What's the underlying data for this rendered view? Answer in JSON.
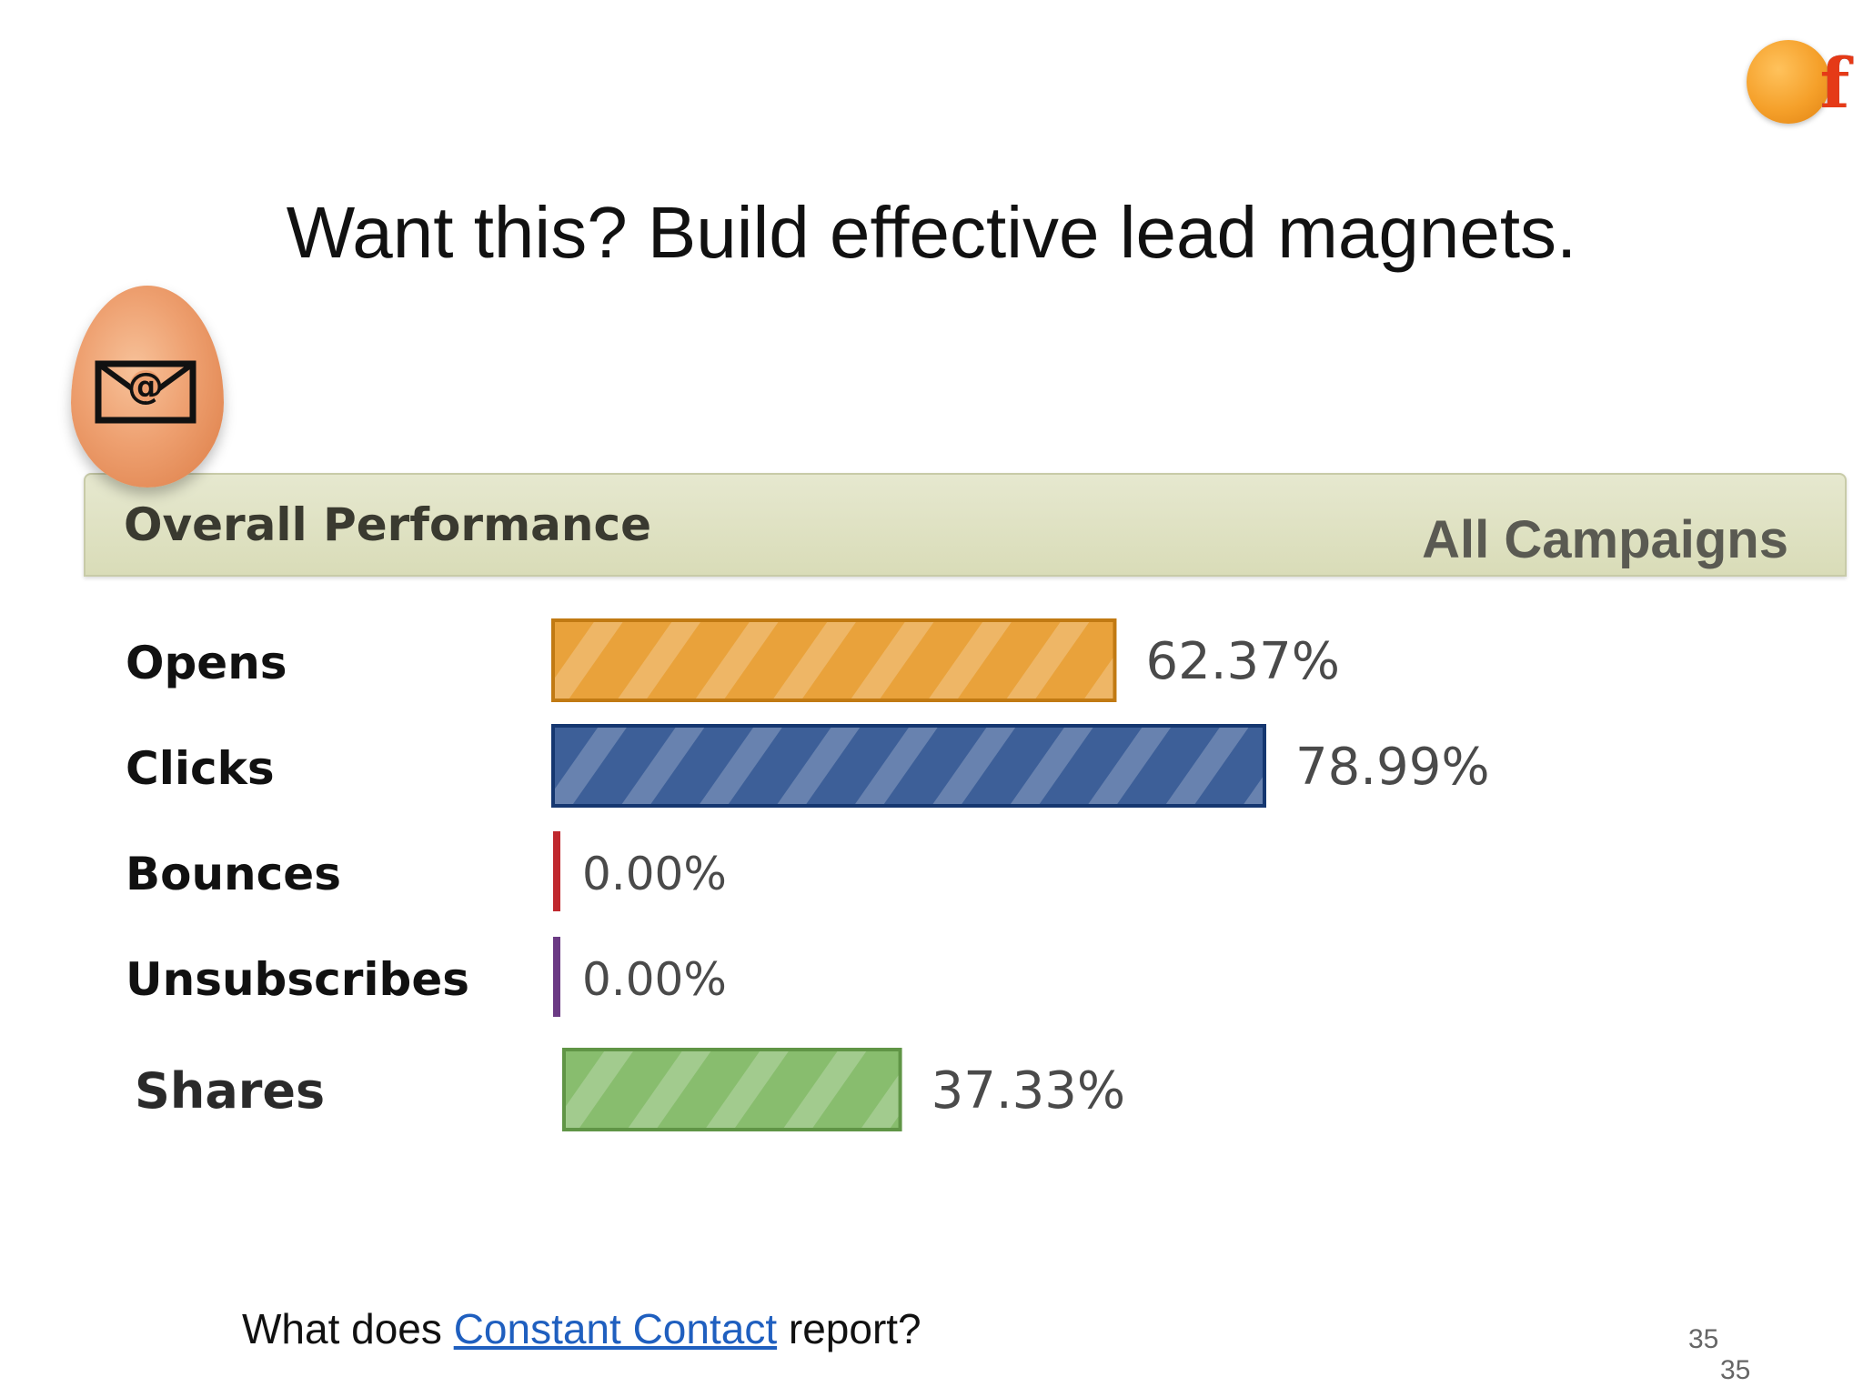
{
  "title": "Want this?  Build effective lead magnets.",
  "logo": {
    "text": "ff",
    "icon": "ff-logo-icon"
  },
  "egg_icon": "email-at-envelope-icon",
  "panel": {
    "title": "Overall Performance",
    "subtitle": "All Campaigns"
  },
  "chart_data": {
    "type": "bar",
    "orientation": "horizontal",
    "categories": [
      "Opens",
      "Clicks",
      "Bounces",
      "Unsubscribes",
      "Shares"
    ],
    "values": [
      62.37,
      78.99,
      0.0,
      0.0,
      37.33
    ],
    "value_labels": [
      "62.37%",
      "78.99%",
      "0.00%",
      "0.00%",
      "37.33%"
    ],
    "colors": [
      "#e9a23b",
      "#3d5f98",
      "#c0282e",
      "#6b3a84",
      "#88bd6e"
    ],
    "xlim": [
      0,
      100
    ],
    "grid": false
  },
  "footer": {
    "prefix": "What does ",
    "link": "Constant Contact",
    "suffix": " report?"
  },
  "page_number": "35",
  "page_number_2": "35"
}
